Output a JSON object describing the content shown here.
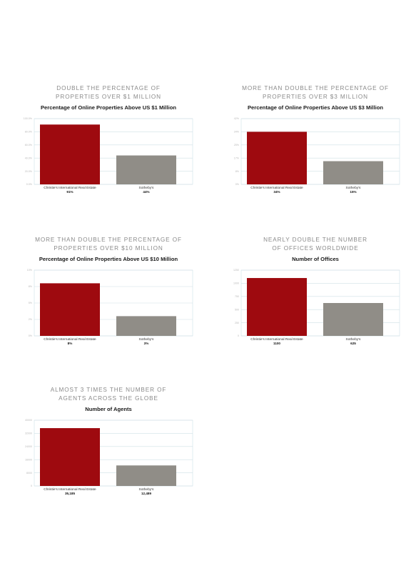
{
  "chart_data": [
    {
      "type": "bar",
      "headline": [
        "DOUBLE THE PERCENTAGE OF",
        "PROPERTIES OVER $1 MILLION"
      ],
      "title": "Percentage of Online Properties Above US $1 Million",
      "categories": [
        "Christie's International Real Estate",
        "Sotheby's"
      ],
      "values": [
        91,
        44
      ],
      "value_labels": [
        "91%",
        "44%"
      ],
      "ylim": [
        0,
        100
      ],
      "yticks": [
        "0.0%",
        "20.0%",
        "40.0%",
        "60.0%",
        "80.0%",
        "100.0%"
      ],
      "grid": true,
      "colors": [
        "#9e0a0f",
        "#908d87"
      ]
    },
    {
      "type": "bar",
      "headline": [
        "MORE THAN DOUBLE THE PERCENTAGE OF",
        "PROPERTIES OVER $3 MILLION"
      ],
      "title": "Percentage of Online Properties Above US $3 Million",
      "categories": [
        "Christie's International Real Estate",
        "Sotheby's"
      ],
      "values": [
        34,
        15
      ],
      "value_labels": [
        "34%",
        "15%"
      ],
      "ylim": [
        0,
        42.5
      ],
      "yticks": [
        "0%",
        "8%",
        "17%",
        "25%",
        "34%",
        "42%"
      ],
      "grid": true,
      "colors": [
        "#9e0a0f",
        "#908d87"
      ]
    },
    {
      "type": "bar",
      "headline": [
        "MORE THAN DOUBLE THE PERCENTAGE OF",
        "PROPERTIES OVER $10 MILLION"
      ],
      "title": "Percentage of Online Properties Above US $10 Million",
      "categories": [
        "Christie's International Real Estate",
        "Sotheby's"
      ],
      "values": [
        8,
        3
      ],
      "value_labels": [
        "8%",
        "3%"
      ],
      "ylim": [
        0,
        10
      ],
      "yticks": [
        "0%",
        "2%",
        "5%",
        "8%",
        "10%"
      ],
      "grid": true,
      "colors": [
        "#9e0a0f",
        "#908d87"
      ]
    },
    {
      "type": "bar",
      "headline": [
        "NEARLY DOUBLE THE NUMBER",
        "OF OFFICES WORLDWIDE"
      ],
      "title": "Number of Offices",
      "categories": [
        "Christie's International Real Estate",
        "Sotheby's"
      ],
      "values": [
        1100,
        625
      ],
      "value_labels": [
        "1100",
        "625"
      ],
      "ylim": [
        0,
        1250
      ],
      "yticks": [
        "0",
        "250",
        "500",
        "750",
        "1000",
        "1250"
      ],
      "grid": true,
      "colors": [
        "#9e0a0f",
        "#908d87"
      ]
    },
    {
      "type": "bar",
      "headline": [
        "ALMOST 3 TIMES THE NUMBER OF",
        "AGENTS ACROSS THE GLOBE"
      ],
      "title": "Number of Agents",
      "categories": [
        "Christie's International Real Estate",
        "Sotheby's"
      ],
      "values": [
        35185,
        12489
      ],
      "value_labels": [
        "35,185",
        "12,489"
      ],
      "ylim": [
        0,
        40000
      ],
      "yticks": [
        "0",
        "8000",
        "16000",
        "24000",
        "32000",
        "40000"
      ],
      "grid": true,
      "colors": [
        "#9e0a0f",
        "#908d87"
      ]
    }
  ]
}
